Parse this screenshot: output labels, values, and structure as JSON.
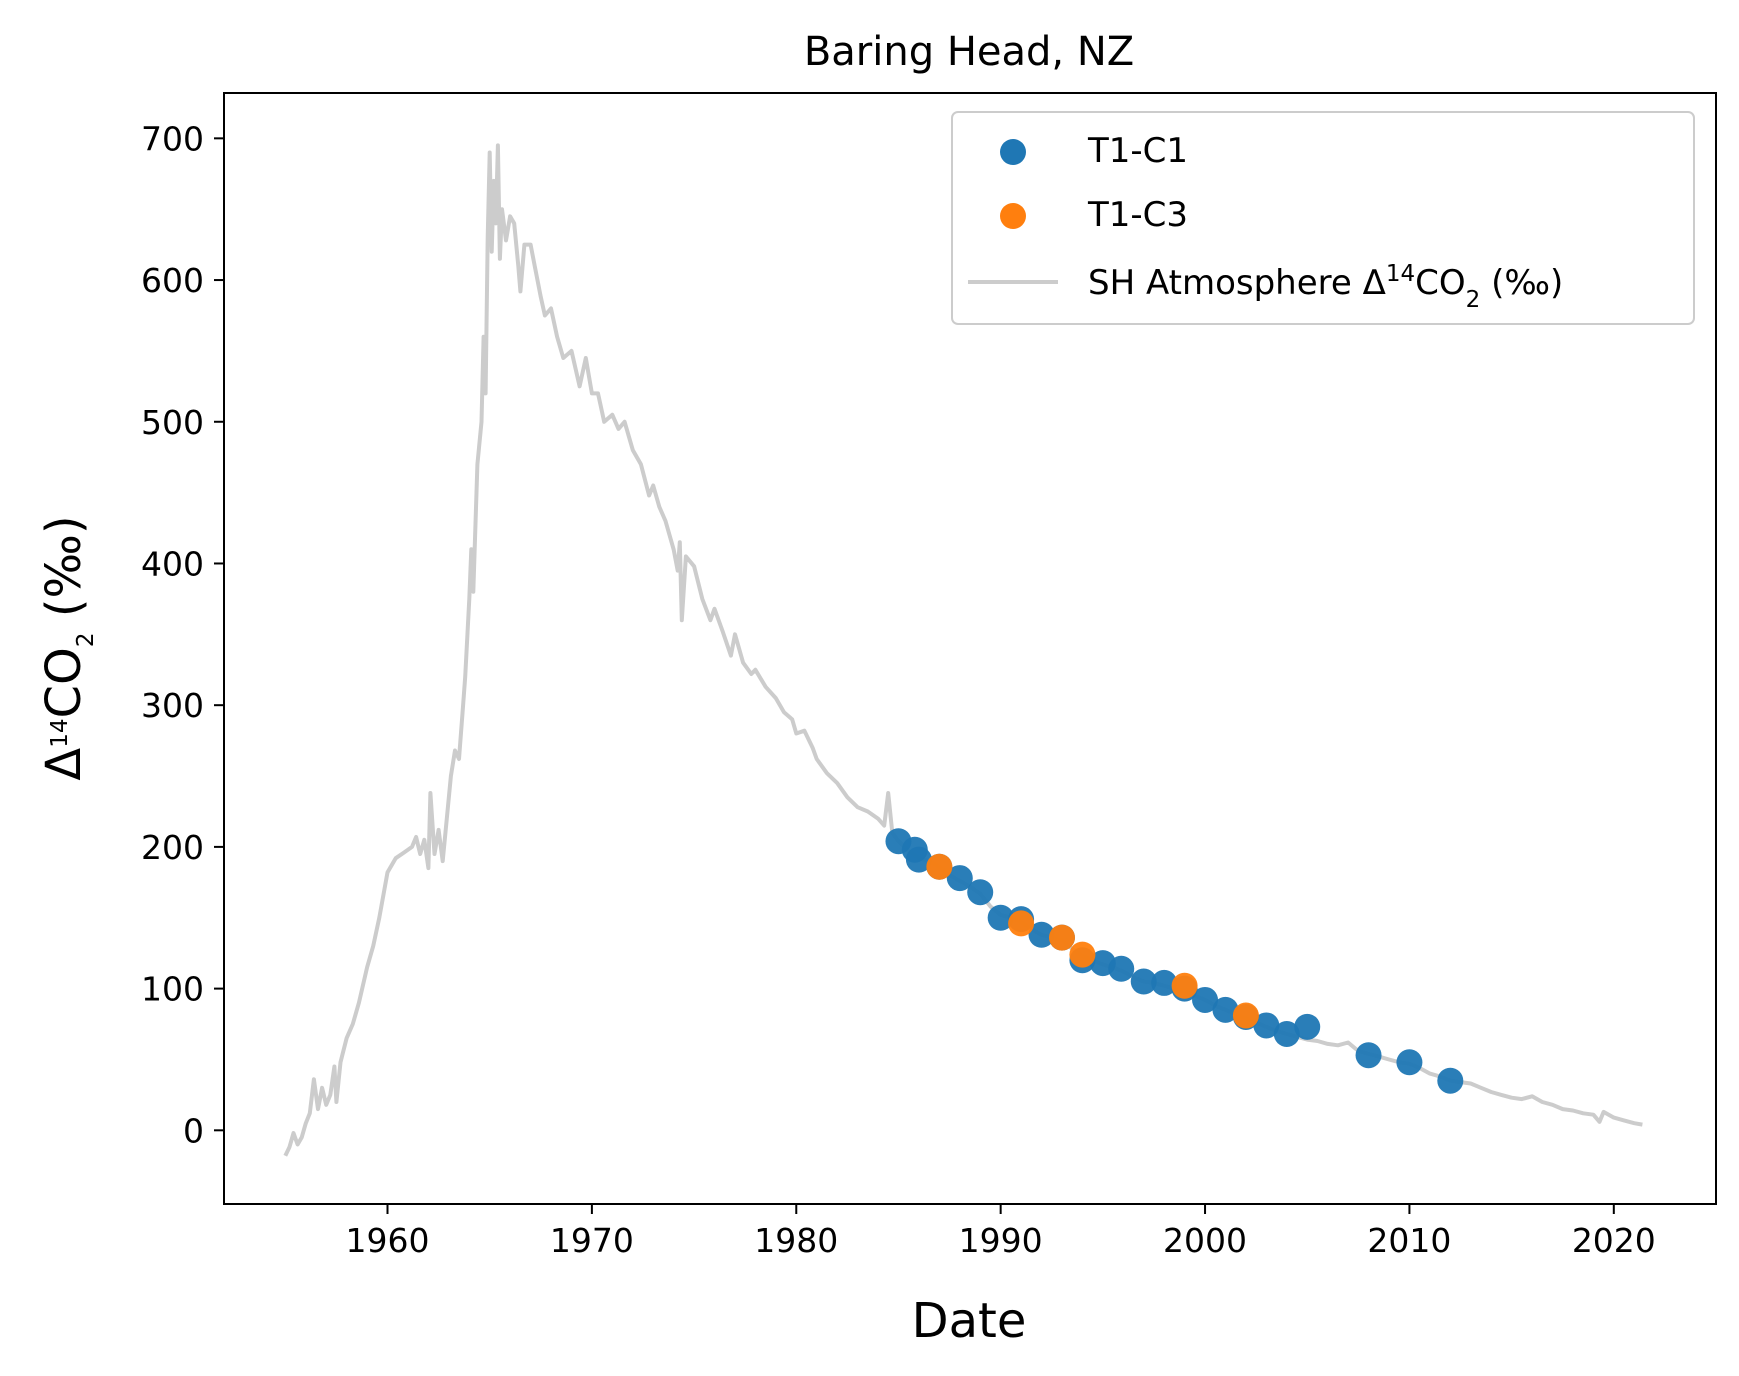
{
  "chart_data": {
    "type": "scatter",
    "title": "Baring Head, NZ",
    "xlabel": "Date",
    "ylabel": {
      "prefix": "Δ",
      "sup": "14",
      "main": "CO",
      "sub": "2",
      "suffix": " (‰)"
    },
    "xlim": [
      1952,
      2025
    ],
    "ylim": [
      -52,
      732
    ],
    "xticks": [
      1960,
      1970,
      1980,
      1990,
      2000,
      2010,
      2020
    ],
    "yticks": [
      0,
      100,
      200,
      300,
      400,
      500,
      600,
      700
    ],
    "grid": false,
    "legend_position": "top-right",
    "legend": [
      {
        "kind": "marker",
        "series": "T1-C1",
        "text": "T1-C1",
        "color": "#1f77b4"
      },
      {
        "kind": "marker",
        "series": "T1-C3",
        "text": "T1-C3",
        "color": "#ff7f0e"
      },
      {
        "kind": "line",
        "series": "atmosphere",
        "color": "#cccccc",
        "text": {
          "prefix": "SH Atmosphere Δ",
          "sup": "14",
          "main": "CO",
          "sub": "2",
          "suffix": " (‰)"
        }
      }
    ],
    "series": [
      {
        "name": "T1-C1",
        "type": "scatter",
        "color": "#1f77b4",
        "points": [
          [
            1985.0,
            204
          ],
          [
            1985.8,
            198
          ],
          [
            1986.0,
            191
          ],
          [
            1987.0,
            186
          ],
          [
            1988.0,
            178
          ],
          [
            1989.0,
            168
          ],
          [
            1990.0,
            150
          ],
          [
            1991.0,
            149
          ],
          [
            1992.0,
            138
          ],
          [
            1993.0,
            136
          ],
          [
            1994.0,
            120
          ],
          [
            1995.0,
            118
          ],
          [
            1995.9,
            114
          ],
          [
            1997.0,
            105
          ],
          [
            1998.0,
            104
          ],
          [
            1999.0,
            100
          ],
          [
            2000.0,
            92
          ],
          [
            2001.0,
            85
          ],
          [
            2002.0,
            80
          ],
          [
            2003.0,
            74
          ],
          [
            2004.0,
            68
          ],
          [
            2005.0,
            73
          ],
          [
            2008.0,
            53
          ],
          [
            2010.0,
            48
          ],
          [
            2012.0,
            35
          ]
        ]
      },
      {
        "name": "T1-C3",
        "type": "scatter",
        "color": "#ff7f0e",
        "points": [
          [
            1987.0,
            186
          ],
          [
            1991.0,
            146
          ],
          [
            1993.0,
            136
          ],
          [
            1994.0,
            124
          ],
          [
            1999.0,
            102
          ],
          [
            2002.0,
            81
          ]
        ]
      },
      {
        "name": "atmosphere",
        "type": "line",
        "color": "#cccccc",
        "points": [
          [
            1955.0,
            -18
          ],
          [
            1955.2,
            -12
          ],
          [
            1955.4,
            -2
          ],
          [
            1955.6,
            -10
          ],
          [
            1955.8,
            -5
          ],
          [
            1956.0,
            5
          ],
          [
            1956.2,
            12
          ],
          [
            1956.4,
            36
          ],
          [
            1956.6,
            15
          ],
          [
            1956.8,
            30
          ],
          [
            1957.0,
            18
          ],
          [
            1957.2,
            25
          ],
          [
            1957.4,
            45
          ],
          [
            1957.5,
            20
          ],
          [
            1957.7,
            48
          ],
          [
            1958.0,
            65
          ],
          [
            1958.3,
            75
          ],
          [
            1958.6,
            90
          ],
          [
            1959.0,
            115
          ],
          [
            1959.3,
            130
          ],
          [
            1959.6,
            150
          ],
          [
            1960.0,
            182
          ],
          [
            1960.4,
            192
          ],
          [
            1960.8,
            196
          ],
          [
            1961.2,
            200
          ],
          [
            1961.4,
            207
          ],
          [
            1961.6,
            195
          ],
          [
            1961.8,
            205
          ],
          [
            1962.0,
            185
          ],
          [
            1962.1,
            238
          ],
          [
            1962.3,
            195
          ],
          [
            1962.5,
            212
          ],
          [
            1962.7,
            190
          ],
          [
            1962.9,
            220
          ],
          [
            1963.1,
            250
          ],
          [
            1963.3,
            268
          ],
          [
            1963.5,
            262
          ],
          [
            1963.7,
            300
          ],
          [
            1963.8,
            320
          ],
          [
            1964.0,
            375
          ],
          [
            1964.1,
            410
          ],
          [
            1964.2,
            380
          ],
          [
            1964.4,
            470
          ],
          [
            1964.6,
            500
          ],
          [
            1964.7,
            560
          ],
          [
            1964.8,
            520
          ],
          [
            1964.9,
            630
          ],
          [
            1965.0,
            690
          ],
          [
            1965.1,
            620
          ],
          [
            1965.2,
            670
          ],
          [
            1965.3,
            640
          ],
          [
            1965.4,
            695
          ],
          [
            1965.5,
            615
          ],
          [
            1965.6,
            650
          ],
          [
            1965.8,
            628
          ],
          [
            1966.0,
            645
          ],
          [
            1966.2,
            640
          ],
          [
            1966.4,
            610
          ],
          [
            1966.5,
            592
          ],
          [
            1966.7,
            625
          ],
          [
            1967.0,
            625
          ],
          [
            1967.2,
            610
          ],
          [
            1967.5,
            588
          ],
          [
            1967.7,
            575
          ],
          [
            1968.0,
            580
          ],
          [
            1968.3,
            560
          ],
          [
            1968.6,
            545
          ],
          [
            1969.0,
            550
          ],
          [
            1969.4,
            525
          ],
          [
            1969.7,
            545
          ],
          [
            1970.0,
            520
          ],
          [
            1970.3,
            520
          ],
          [
            1970.6,
            500
          ],
          [
            1971.0,
            505
          ],
          [
            1971.3,
            495
          ],
          [
            1971.6,
            500
          ],
          [
            1972.0,
            480
          ],
          [
            1972.4,
            470
          ],
          [
            1972.8,
            448
          ],
          [
            1973.0,
            455
          ],
          [
            1973.3,
            440
          ],
          [
            1973.6,
            430
          ],
          [
            1974.0,
            410
          ],
          [
            1974.2,
            395
          ],
          [
            1974.3,
            415
          ],
          [
            1974.4,
            360
          ],
          [
            1974.6,
            405
          ],
          [
            1975.0,
            398
          ],
          [
            1975.4,
            375
          ],
          [
            1975.8,
            360
          ],
          [
            1976.0,
            368
          ],
          [
            1976.4,
            352
          ],
          [
            1976.8,
            335
          ],
          [
            1977.0,
            350
          ],
          [
            1977.4,
            330
          ],
          [
            1977.8,
            322
          ],
          [
            1978.0,
            325
          ],
          [
            1978.5,
            313
          ],
          [
            1979.0,
            305
          ],
          [
            1979.4,
            295
          ],
          [
            1979.8,
            290
          ],
          [
            1980.0,
            280
          ],
          [
            1980.4,
            282
          ],
          [
            1980.8,
            270
          ],
          [
            1981.0,
            262
          ],
          [
            1981.5,
            252
          ],
          [
            1982.0,
            245
          ],
          [
            1982.5,
            235
          ],
          [
            1983.0,
            228
          ],
          [
            1983.5,
            225
          ],
          [
            1984.0,
            220
          ],
          [
            1984.3,
            215
          ],
          [
            1984.5,
            238
          ],
          [
            1984.7,
            210
          ],
          [
            1985.0,
            204
          ],
          [
            1985.5,
            197
          ],
          [
            1986.0,
            192
          ],
          [
            1986.5,
            190
          ],
          [
            1987.0,
            186
          ],
          [
            1987.5,
            180
          ],
          [
            1988.0,
            176
          ],
          [
            1988.5,
            172
          ],
          [
            1989.0,
            167
          ],
          [
            1989.5,
            158
          ],
          [
            1990.0,
            152
          ],
          [
            1990.5,
            150
          ],
          [
            1991.0,
            147
          ],
          [
            1991.5,
            142
          ],
          [
            1992.0,
            138
          ],
          [
            1992.5,
            136
          ],
          [
            1993.0,
            134
          ],
          [
            1993.5,
            128
          ],
          [
            1994.0,
            123
          ],
          [
            1994.5,
            120
          ],
          [
            1995.0,
            117
          ],
          [
            1995.5,
            115
          ],
          [
            1996.0,
            112
          ],
          [
            1996.5,
            108
          ],
          [
            1997.0,
            105
          ],
          [
            1997.5,
            104
          ],
          [
            1998.0,
            102
          ],
          [
            1998.5,
            100
          ],
          [
            1999.0,
            98
          ],
          [
            1999.5,
            95
          ],
          [
            2000.0,
            92
          ],
          [
            2000.5,
            88
          ],
          [
            2001.0,
            85
          ],
          [
            2001.5,
            82
          ],
          [
            2002.0,
            79
          ],
          [
            2002.5,
            76
          ],
          [
            2003.0,
            73
          ],
          [
            2003.5,
            70
          ],
          [
            2004.0,
            68
          ],
          [
            2004.5,
            66
          ],
          [
            2005.0,
            64
          ],
          [
            2005.5,
            63
          ],
          [
            2006.0,
            61
          ],
          [
            2006.5,
            60
          ],
          [
            2007.0,
            62
          ],
          [
            2007.5,
            56
          ],
          [
            2008.0,
            54
          ],
          [
            2008.5,
            52
          ],
          [
            2009.0,
            50
          ],
          [
            2009.5,
            48
          ],
          [
            2010.0,
            47
          ],
          [
            2010.5,
            44
          ],
          [
            2011.0,
            40
          ],
          [
            2011.5,
            38
          ],
          [
            2012.0,
            35
          ],
          [
            2012.5,
            34
          ],
          [
            2013.0,
            33
          ],
          [
            2013.5,
            30
          ],
          [
            2014.0,
            27
          ],
          [
            2014.5,
            25
          ],
          [
            2015.0,
            23
          ],
          [
            2015.5,
            22
          ],
          [
            2016.0,
            24
          ],
          [
            2016.5,
            20
          ],
          [
            2017.0,
            18
          ],
          [
            2017.5,
            15
          ],
          [
            2018.0,
            14
          ],
          [
            2018.5,
            12
          ],
          [
            2019.0,
            11
          ],
          [
            2019.3,
            6
          ],
          [
            2019.5,
            13
          ],
          [
            2020.0,
            9
          ],
          [
            2020.5,
            7
          ],
          [
            2021.0,
            5
          ],
          [
            2021.4,
            4
          ]
        ]
      }
    ]
  }
}
